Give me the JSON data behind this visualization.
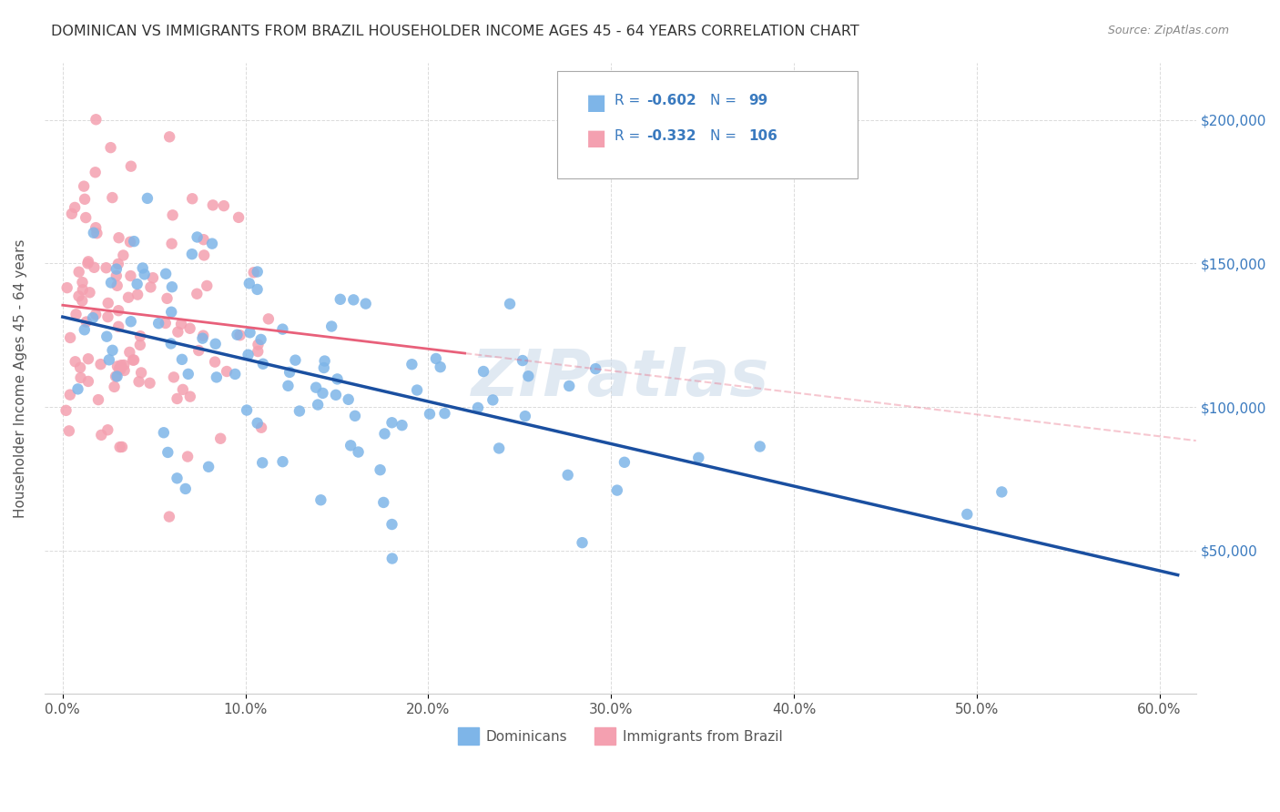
{
  "title": "DOMINICAN VS IMMIGRANTS FROM BRAZIL HOUSEHOLDER INCOME AGES 45 - 64 YEARS CORRELATION CHART",
  "source": "Source: ZipAtlas.com",
  "ylabel": "Householder Income Ages 45 - 64 years",
  "ytick_labels": [
    "$50,000",
    "$100,000",
    "$150,000",
    "$200,000"
  ],
  "ytick_vals": [
    50000,
    100000,
    150000,
    200000
  ],
  "ylim": [
    0,
    220000
  ],
  "xlim": [
    -0.01,
    0.62
  ],
  "legend_r_dominican": "-0.602",
  "legend_n_dominican": "99",
  "legend_r_brazil": "-0.332",
  "legend_n_brazil": "106",
  "dominican_color": "#7eb5e8",
  "brazil_color": "#f4a0b0",
  "dominican_line_color": "#1a4fa0",
  "brazil_line_color": "#e8607a",
  "background_color": "#ffffff",
  "legend_text_color": "#3a7abf",
  "tick_color": "#555555"
}
